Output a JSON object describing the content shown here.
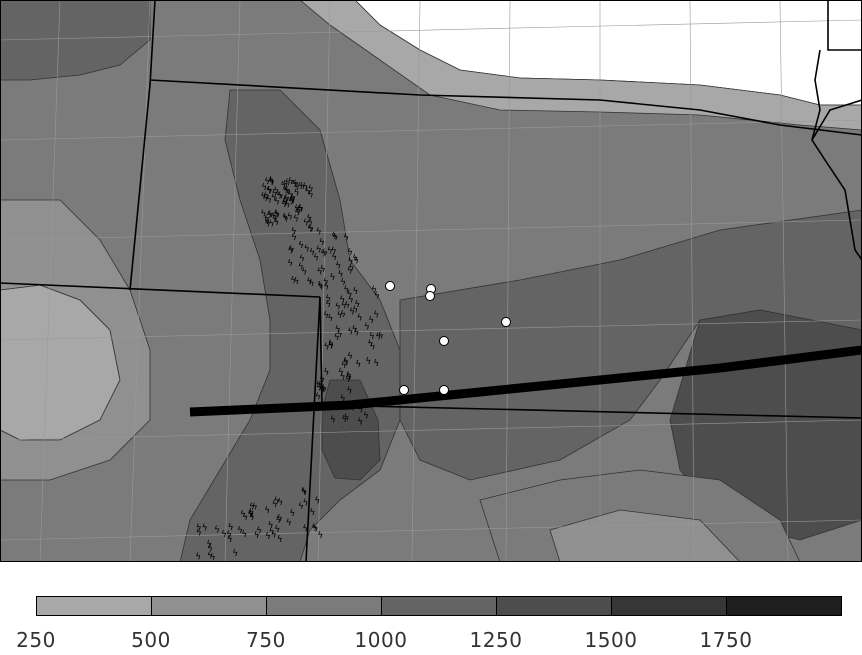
{
  "colorbar": {
    "colors": [
      "#a8a8a8",
      "#909090",
      "#7b7b7b",
      "#646464",
      "#4d4d4d",
      "#363636",
      "#1e1e1e"
    ],
    "tick_labels": [
      "250",
      "500",
      "750",
      "1000",
      "1250",
      "1500",
      "1750"
    ]
  },
  "map": {
    "background_colors": [
      "#ffffff",
      "#a8a8a8",
      "#909090",
      "#7b7b7b",
      "#646464",
      "#4d4d4d"
    ],
    "lightning_symbol": "ϟ",
    "marker_style": "white-circle"
  }
}
